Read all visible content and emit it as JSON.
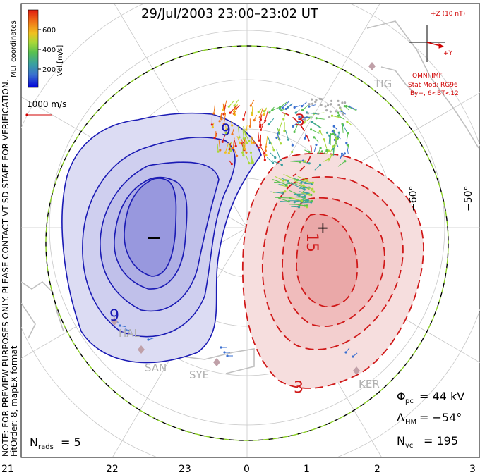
{
  "title": "29/Jul/2003 23:00–23:02 UT",
  "colorbar": {
    "label": "Vel [m/s]",
    "ticks": [
      "600",
      "400",
      "200"
    ],
    "colors": [
      "#0000d8",
      "#3a6fd0",
      "#3aa0a0",
      "#58c050",
      "#a8d838",
      "#f0c020",
      "#f07818",
      "#e01a10"
    ]
  },
  "side_note": {
    "mlt": "MLT coordinates",
    "preview": "NOTE: FOR PREVIEW PURPOSES ONLY. PLEASE CONTACT VT-SD STAFF FOR VERIFICATION.",
    "fit": "FitOrder: 8, mapEX format"
  },
  "ref_vector": {
    "label": "1000 m/s",
    "color": "#d00000"
  },
  "imf": {
    "z_label": "+Z (10 nT)",
    "y_label": "+Y",
    "source": "OMNI IMF",
    "model": "Stat Mod: RG96",
    "cond": "By−, 6<BT<12"
  },
  "stations": [
    "TIG",
    "HAL",
    "SAN",
    "SYE",
    "KER"
  ],
  "lat_labels": [
    "−50°",
    "−60°"
  ],
  "contour_labels": {
    "neg": "9",
    "pos1": "3",
    "pos2": "15",
    "pos3": "3",
    "neg_sym": "−",
    "pos_sym": "+"
  },
  "stats": {
    "phi_sym": "Φ",
    "phi_sub": "pc",
    "phi_val": "= 44 kV",
    "lam_sym": "Λ",
    "lam_sub": "HM",
    "lam_val": "= −54°",
    "nvc_sym": "N",
    "nvc_sub": "vc",
    "nvc_val": "= 195",
    "nrad_sym": "N",
    "nrad_sub": "rads",
    "nrad_val": "= 5"
  },
  "mlt_ticks": [
    "21",
    "22",
    "23",
    "0",
    "1",
    "2",
    "3"
  ],
  "colors": {
    "negative": "#1a1ab4",
    "positive": "#d01818",
    "hmb_dash": "#8cd028"
  }
}
